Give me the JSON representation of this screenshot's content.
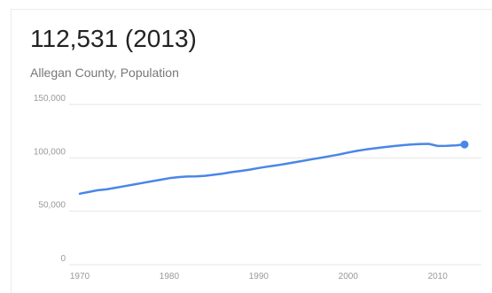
{
  "header": {
    "headline": "112,531 (2013)",
    "subtitle": "Allegan County, Population"
  },
  "chart_data": {
    "type": "line",
    "title": "",
    "xlabel": "",
    "ylabel": "",
    "xlim": [
      1970,
      2013
    ],
    "ylim": [
      0,
      150000
    ],
    "x_ticks": [
      1970,
      1980,
      1990,
      2000,
      2010
    ],
    "x_tick_labels": [
      "1970",
      "1980",
      "1990",
      "2000",
      "2010"
    ],
    "y_ticks": [
      0,
      50000,
      100000,
      150000
    ],
    "y_tick_labels": [
      "0",
      "50,000",
      "100,000",
      "150,000"
    ],
    "grid": "horizontal",
    "legend": "none",
    "colors": {
      "line": "#4a86e8",
      "grid": "#e6e6e6",
      "axis_text": "#9a9a9a"
    },
    "series": [
      {
        "x": [
          1970,
          1971,
          1972,
          1973,
          1974,
          1975,
          1976,
          1977,
          1978,
          1979,
          1980,
          1981,
          1982,
          1983,
          1984,
          1985,
          1986,
          1987,
          1988,
          1989,
          1990,
          1991,
          1992,
          1993,
          1994,
          1995,
          1996,
          1997,
          1998,
          1999,
          2000,
          2001,
          2002,
          2003,
          2004,
          2005,
          2006,
          2007,
          2008,
          2009,
          2010,
          2011,
          2012,
          2013
        ],
        "y": [
          66500,
          68000,
          69700,
          70500,
          72000,
          73500,
          75000,
          76500,
          78000,
          79500,
          81000,
          82000,
          82500,
          82600,
          83200,
          84200,
          85300,
          86700,
          87800,
          89000,
          90500,
          91800,
          93000,
          94400,
          95800,
          97300,
          98800,
          100200,
          101700,
          103200,
          105000,
          106600,
          107900,
          109000,
          110000,
          111000,
          111800,
          112500,
          112900,
          113100,
          111100,
          111200,
          111700,
          112531
        ]
      }
    ],
    "highlight_point": {
      "x": 2013,
      "y": 112531
    }
  }
}
